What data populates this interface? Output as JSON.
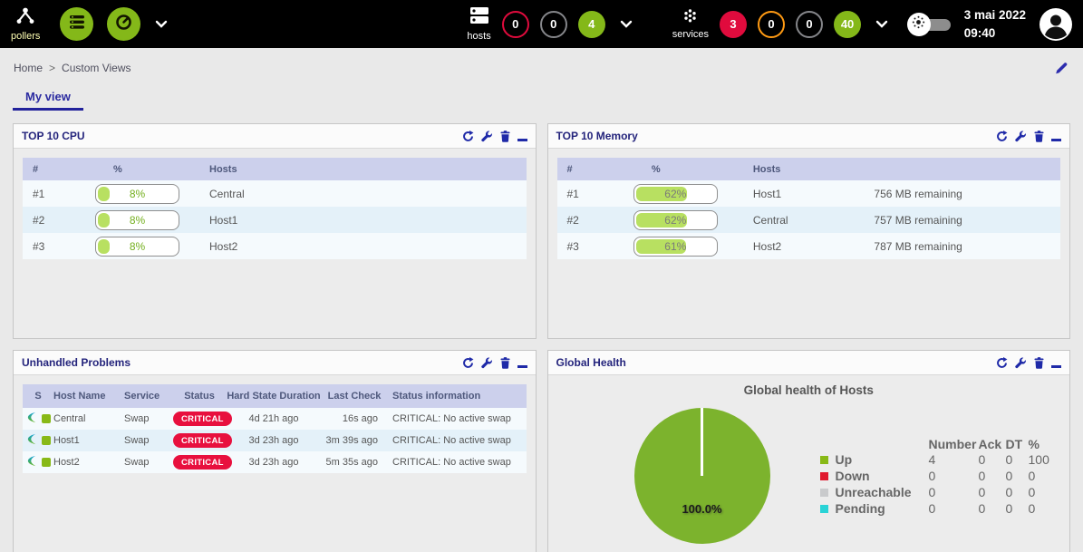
{
  "topbar": {
    "pollers_label": "pollers",
    "hosts": {
      "label": "hosts",
      "counters": [
        {
          "value": "0",
          "style": "ring-red"
        },
        {
          "value": "0",
          "style": "ring-gray"
        },
        {
          "value": "4",
          "style": "fill-green"
        }
      ]
    },
    "services": {
      "label": "services",
      "counters": [
        {
          "value": "3",
          "style": "fill-red"
        },
        {
          "value": "0",
          "style": "ring-orange"
        },
        {
          "value": "0",
          "style": "ring-gray"
        },
        {
          "value": "40",
          "style": "fill-green"
        }
      ]
    },
    "clock": {
      "date": "3 mai 2022",
      "time": "09:40"
    }
  },
  "breadcrumb": {
    "items": [
      "Home",
      "Custom Views"
    ],
    "separator": ">"
  },
  "tab": {
    "label": "My view"
  },
  "widgets": {
    "top_cpu": {
      "title": "TOP 10 CPU",
      "columns": [
        "#",
        "%",
        "Hosts"
      ],
      "rows": [
        {
          "rank": "#1",
          "percent": 8,
          "percent_label": "8%",
          "host": "Central"
        },
        {
          "rank": "#2",
          "percent": 8,
          "percent_label": "8%",
          "host": "Host1"
        },
        {
          "rank": "#3",
          "percent": 8,
          "percent_label": "8%",
          "host": "Host2"
        }
      ]
    },
    "top_memory": {
      "title": "TOP 10 Memory",
      "columns": [
        "#",
        "%",
        "Hosts"
      ],
      "rows": [
        {
          "rank": "#1",
          "percent": 62,
          "percent_label": "62%",
          "host": "Host1",
          "remaining": "756 MB remaining"
        },
        {
          "rank": "#2",
          "percent": 62,
          "percent_label": "62%",
          "host": "Central",
          "remaining": "757 MB remaining"
        },
        {
          "rank": "#3",
          "percent": 61,
          "percent_label": "61%",
          "host": "Host2",
          "remaining": "787 MB remaining"
        }
      ]
    },
    "problems": {
      "title": "Unhandled Problems",
      "columns": [
        "S",
        "Host Name",
        "Service",
        "Status",
        "Hard State Duration",
        "Last Check",
        "Status information"
      ],
      "rows": [
        {
          "host": "Central",
          "service": "Swap",
          "status": "CRITICAL",
          "duration": "4d 21h ago",
          "last_check": "16s ago",
          "info": "CRITICAL: No active swap"
        },
        {
          "host": "Host1",
          "service": "Swap",
          "status": "CRITICAL",
          "duration": "3d 23h ago",
          "last_check": "3m 39s ago",
          "info": "CRITICAL: No active swap"
        },
        {
          "host": "Host2",
          "service": "Swap",
          "status": "CRITICAL",
          "duration": "3d 23h ago",
          "last_check": "5m 35s ago",
          "info": "CRITICAL: No active swap"
        }
      ]
    },
    "global_health": {
      "title": "Global Health",
      "chart_title": "Global health of Hosts",
      "pie_label": "100.0%",
      "legend_columns": [
        "Number",
        "Ack",
        "DT",
        "%"
      ],
      "legend": [
        {
          "label": "Up",
          "color": "#88b917",
          "number": "4",
          "ack": "0",
          "dt": "0",
          "pct": "100"
        },
        {
          "label": "Down",
          "color": "#e0182d",
          "number": "0",
          "ack": "0",
          "dt": "0",
          "pct": "0"
        },
        {
          "label": "Unreachable",
          "color": "#c9cacc",
          "number": "0",
          "ack": "0",
          "dt": "0",
          "pct": "0"
        },
        {
          "label": "Pending",
          "color": "#29d3d6",
          "number": "0",
          "ack": "0",
          "dt": "0",
          "pct": "0"
        }
      ]
    }
  },
  "chart_data": {
    "type": "pie",
    "title": "Global health of Hosts",
    "labels": [
      "Up",
      "Down",
      "Unreachable",
      "Pending"
    ],
    "values": [
      100,
      0,
      0,
      0
    ],
    "counts": [
      4,
      0,
      0,
      0
    ],
    "colors": [
      "#88b917",
      "#e0182d",
      "#c9cacc",
      "#29d3d6"
    ],
    "annotation": "100.0%",
    "legend_position": "right"
  },
  "colors": {
    "brand_green": "#84b819",
    "critical_red": "#e00b3d",
    "warning_orange": "#ff9a13",
    "neutral_gray": "#85868a",
    "accent_navy": "#1f2aa8",
    "bar_fill": "#b8e061",
    "pie_green": "#7cb32d"
  }
}
